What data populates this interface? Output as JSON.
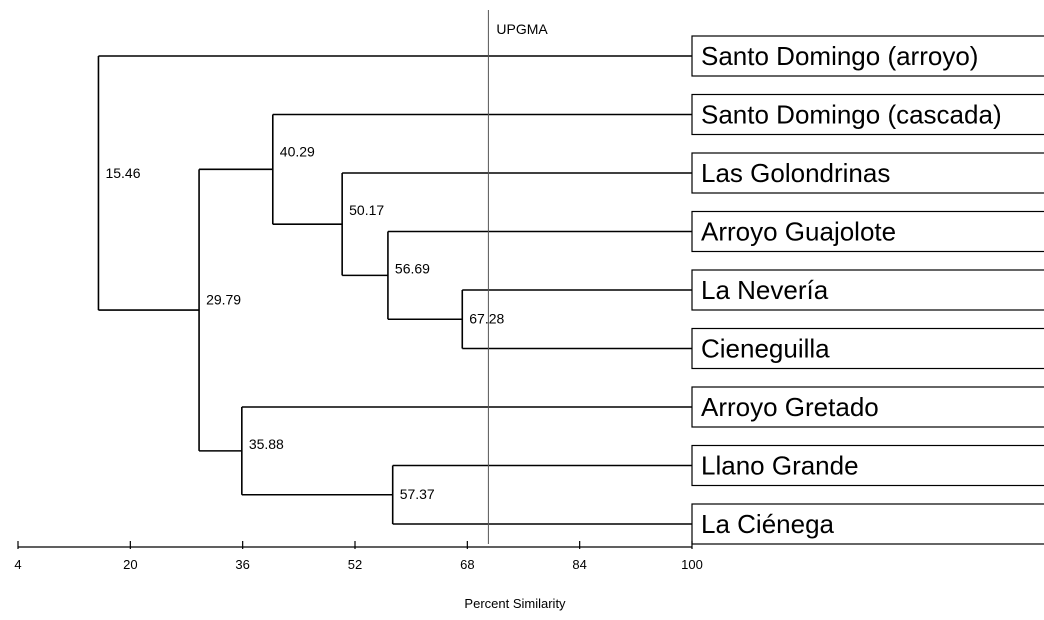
{
  "method_label": "UPGMA",
  "cut_value": 71,
  "x_axis": {
    "title": "Percent Similarity",
    "min": 4,
    "max": 100,
    "ticks": [
      4,
      20,
      36,
      52,
      68,
      84,
      100
    ]
  },
  "leaves": [
    "Santo Domingo (arroyo)",
    "Santo Domingo (cascada)",
    "Las Golondrinas",
    "Arroyo Guajolote",
    "La Nevería",
    "Cieneguilla",
    "Arroyo Gretado",
    "Llano Grande",
    "La Ciénega"
  ],
  "merges": [
    {
      "label": "67.28",
      "similarity": 67.28,
      "children": [
        "leaf:4",
        "leaf:5"
      ]
    },
    {
      "label": "57.37",
      "similarity": 57.37,
      "children": [
        "leaf:7",
        "leaf:8"
      ]
    },
    {
      "label": "56.69",
      "similarity": 56.69,
      "children": [
        "leaf:3",
        "node:0"
      ]
    },
    {
      "label": "50.17",
      "similarity": 50.17,
      "children": [
        "leaf:2",
        "node:2"
      ]
    },
    {
      "label": "40.29",
      "similarity": 40.29,
      "children": [
        "leaf:1",
        "node:3"
      ]
    },
    {
      "label": "35.88",
      "similarity": 35.88,
      "children": [
        "leaf:6",
        "node:1"
      ]
    },
    {
      "label": "29.79",
      "similarity": 29.79,
      "children": [
        "node:4",
        "node:5"
      ]
    },
    {
      "label": "15.46",
      "similarity": 15.46,
      "children": [
        "leaf:0",
        "node:6"
      ]
    }
  ]
}
